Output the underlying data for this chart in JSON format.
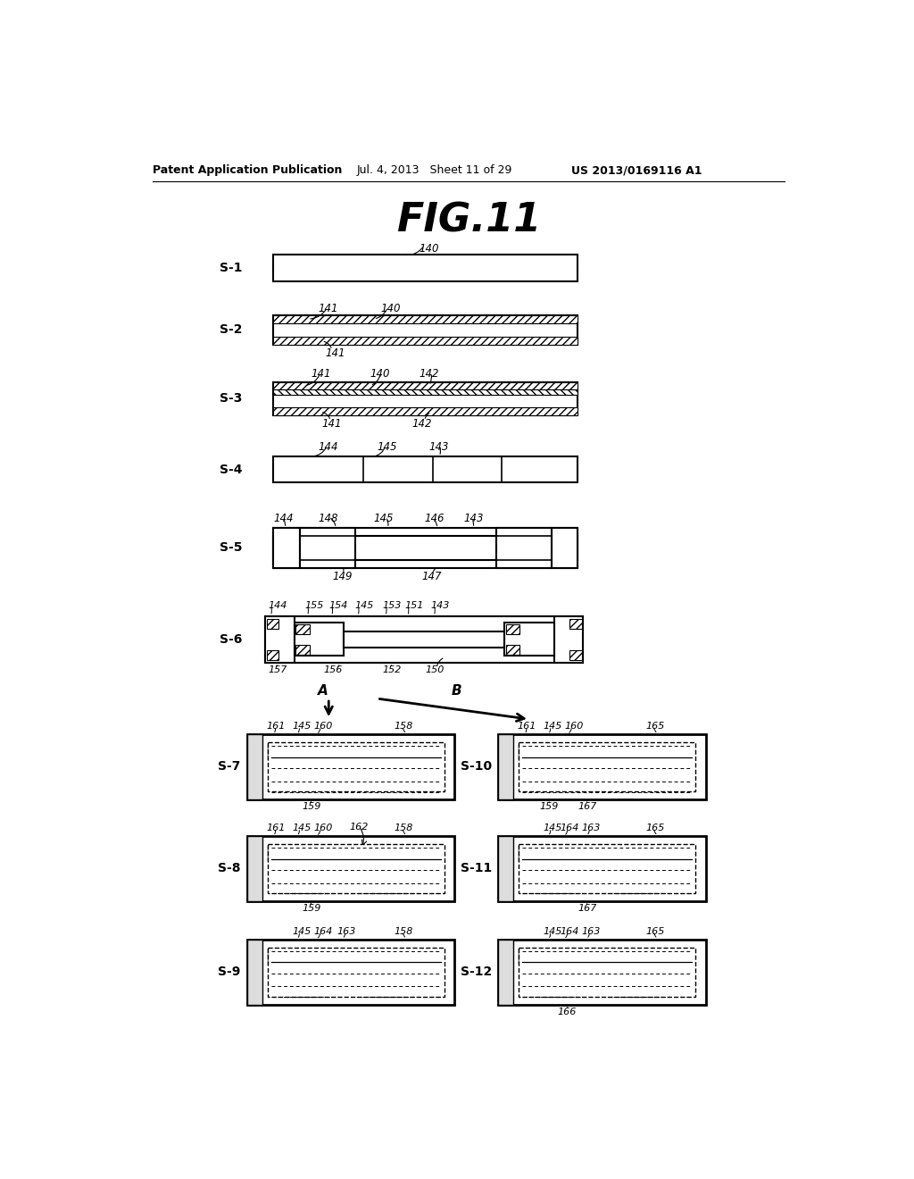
{
  "bg_color": "#ffffff",
  "header_left": "Patent Application Publication",
  "header_mid": "Jul. 4, 2013   Sheet 11 of 29",
  "header_right": "US 2013/0169116 A1",
  "fig_title": "FIG.11"
}
